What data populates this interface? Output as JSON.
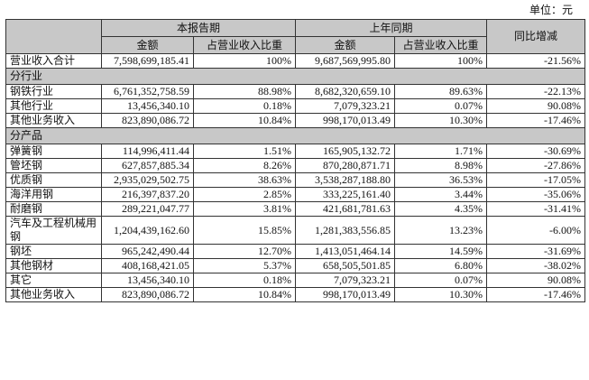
{
  "unit": "单位：元",
  "header": {
    "current": "本报告期",
    "prior": "上年同期",
    "change": "同比增减",
    "sub": [
      "金额",
      "占营业收入比重",
      "金额",
      "占营业收入比重"
    ]
  },
  "rows": [
    [
      "营业收入合计",
      "7,598,699,185.41",
      "100%",
      "9,687,569,995.80",
      "100%",
      "-21.56%"
    ],
    [
      "分行业"
    ],
    [
      "钢铁行业",
      "6,761,352,758.59",
      "88.98%",
      "8,682,320,659.10",
      "89.63%",
      "-22.13%"
    ],
    [
      "其他行业",
      "13,456,340.10",
      "0.18%",
      "7,079,323.21",
      "0.07%",
      "90.08%"
    ],
    [
      "其他业务收入",
      "823,890,086.72",
      "10.84%",
      "998,170,013.49",
      "10.30%",
      "-17.46%"
    ],
    [
      "分产品"
    ],
    [
      "弹簧钢",
      "114,996,411.44",
      "1.51%",
      "165,905,132.72",
      "1.71%",
      "-30.69%"
    ],
    [
      "管坯钢",
      "627,857,885.34",
      "8.26%",
      "870,280,871.71",
      "8.98%",
      "-27.86%"
    ],
    [
      "优质钢",
      "2,935,029,502.75",
      "38.63%",
      "3,538,287,188.80",
      "36.53%",
      "-17.05%"
    ],
    [
      "海洋用钢",
      "216,397,837.20",
      "2.85%",
      "333,225,161.40",
      "3.44%",
      "-35.06%"
    ],
    [
      "耐磨钢",
      "289,221,047.77",
      "3.81%",
      "421,681,781.63",
      "4.35%",
      "-31.41%"
    ],
    [
      "汽车及工程机械用钢",
      "1,204,439,162.60",
      "15.85%",
      "1,281,383,556.85",
      "13.23%",
      "-6.00%"
    ],
    [
      "钢坯",
      "965,242,490.44",
      "12.70%",
      "1,413,051,464.14",
      "14.59%",
      "-31.69%"
    ],
    [
      "其他钢材",
      "408,168,421.05",
      "5.37%",
      "658,505,501.85",
      "6.80%",
      "-38.02%"
    ],
    [
      "其它",
      "13,456,340.10",
      "0.18%",
      "7,079,323.21",
      "0.07%",
      "90.08%"
    ],
    [
      "其他业务收入",
      "823,890,086.72",
      "10.84%",
      "998,170,013.49",
      "10.30%",
      "-17.46%"
    ]
  ]
}
